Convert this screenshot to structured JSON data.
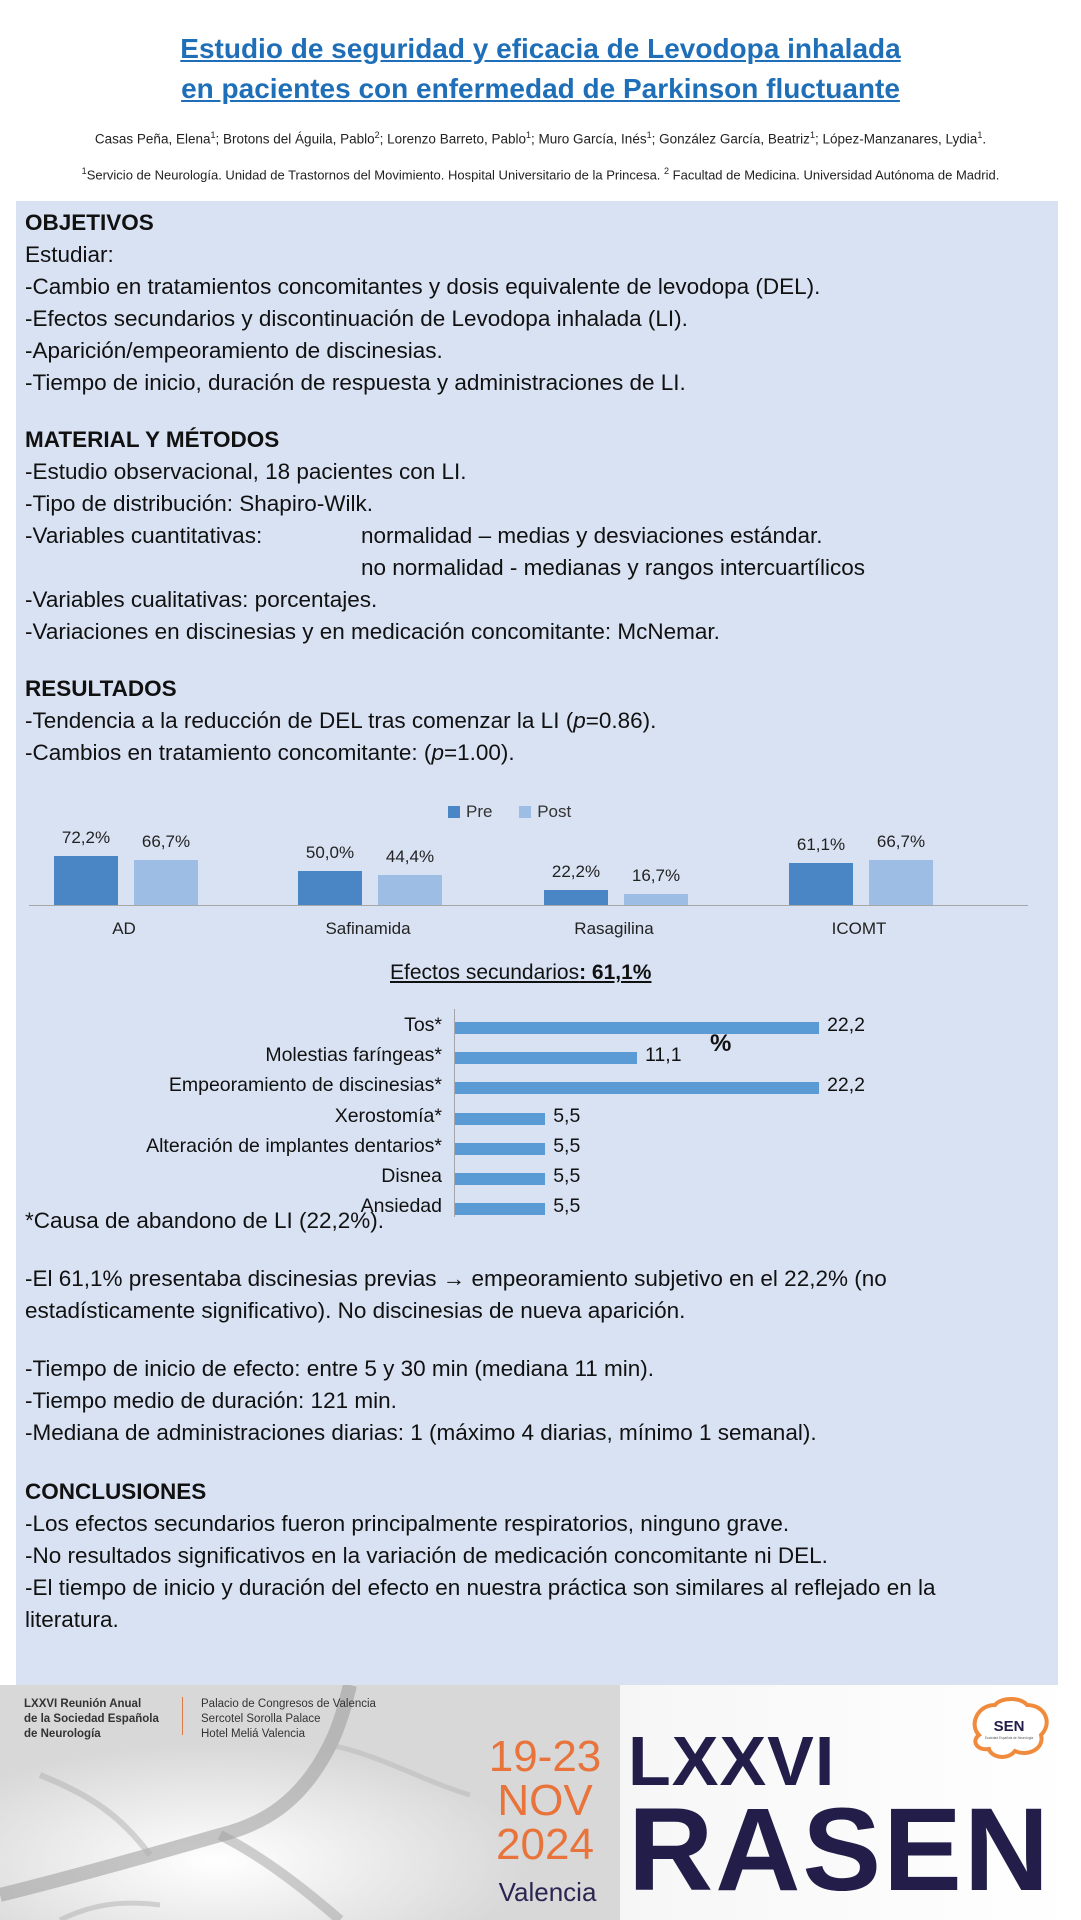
{
  "title": {
    "line1": "Estudio de seguridad y eficacia de Levodopa inhalada",
    "line2": "en pacientes con enfermedad de Parkinson fluctuante"
  },
  "authors": [
    {
      "name": "Casas Peña, Elena",
      "sup": "1",
      "sep": "; "
    },
    {
      "name": "Brotons del Águila, Pablo",
      "sup": "2",
      "sep": "; "
    },
    {
      "name": "Lorenzo Barreto, Pablo",
      "sup": "1",
      "sep": "; "
    },
    {
      "name": "Muro García, Inés",
      "sup": "1",
      "sep": "; "
    },
    {
      "name": "González García, Beatriz",
      "sup": "1",
      "sep": "; "
    },
    {
      "name": "López-Manzanares, Lydia",
      "sup": "1",
      "sep": "."
    }
  ],
  "affiliation": {
    "sup1": "1",
    "text1": "Servicio de Neurología. Unidad de Trastornos del Movimiento. Hospital Universitario de la Princesa.",
    "sup2": "2",
    "text2": " Facultad de Medicina. Universidad Autónoma de Madrid."
  },
  "objetivos": {
    "heading": "OBJETIVOS",
    "lines": [
      "Estudiar:",
      "-Cambio en tratamientos concomitantes y dosis equivalente de levodopa (DEL).",
      "-Efectos secundarios y discontinuación de Levodopa inhalada (LI).",
      "-Aparición/empeoramiento de discinesias.",
      "-Tiempo de inicio, duración de respuesta y administraciones de LI."
    ]
  },
  "metodos": {
    "heading": "MATERIAL Y MÉTODOS",
    "line1": "-Estudio observacional, 18 pacientes con LI.",
    "line2": "-Tipo de distribución: Shapiro-Wilk.",
    "line3": "-Variables cuantitativas:",
    "line3b": "normalidad – medias y desviaciones estándar.",
    "line4b": "no normalidad - medianas y rangos intercuartílicos",
    "line5": "-Variables cualitativas: porcentajes.",
    "line6": "-Variaciones en discinesias y en medicación concomitante: McNemar."
  },
  "resultados": {
    "heading": "RESULTADOS",
    "line1a": "-Tendencia a la reducción de DEL tras comenzar la LI (",
    "line1p": "p",
    "line1b": "=0.86).",
    "line2a": "-Cambios en tratamiento concomitante: (",
    "line2p": "p",
    "line2b": "=1.00).",
    "footnote": "*Causa de abandono de LI (22,2%).",
    "para1": "-El 61,1% presentaba discinesias previas",
    "arrow": "→",
    "para1b": " empeoramiento subjetivo en el  22,2% (no",
    "para1c": "estadísticamente significativo). No discinesias de nueva aparición.",
    "t1": "-Tiempo de inicio de efecto: entre 5 y 30 min (mediana 11 min).",
    "t2": "-Tiempo medio de duración: 121 min.",
    "t3": "-Mediana de administraciones diarias: 1 (máximo 4 diarias, mínimo 1 semanal)."
  },
  "conclusiones": {
    "heading": "CONCLUSIONES",
    "lines": [
      "-Los efectos secundarios fueron principalmente respiratorios, ninguno grave.",
      "-No resultados significativos en la variación de medicación concomitante ni DEL.",
      "-El tiempo de inicio y duración del efecto en nuestra práctica son similares al reflejado en la",
      "literatura."
    ]
  },
  "chart_data": [
    {
      "type": "bar",
      "categories": [
        "AD",
        "Safinamida",
        "Rasagilina",
        "ICOMT"
      ],
      "series": [
        {
          "name": "Pre",
          "values": [
            72.2,
            50.0,
            22.2,
            61.1
          ],
          "labels": [
            "72,2%",
            "50,0%",
            "22,2%",
            "61,1%"
          ],
          "color": "#4a86c5"
        },
        {
          "name": "Post",
          "values": [
            66.7,
            44.4,
            16.7,
            66.7
          ],
          "labels": [
            "66,7%",
            "44,4%",
            "16,7%",
            "66,7%"
          ],
          "color": "#9dbde4"
        }
      ],
      "legend": "top-center",
      "ylim": [
        0,
        100
      ],
      "grid": false
    },
    {
      "type": "bar",
      "orientation": "horizontal",
      "title": "Efectos secundarios: 61,1%",
      "title_prefix": "Efectos secundarios",
      "title_suffix": ": 61,1%",
      "unit_label": "%",
      "categories": [
        "Tos*",
        "Molestias faríngeas*",
        "Empeoramiento de discinesias*",
        "Xerostomía*",
        "Alteración de implantes dentarios*",
        "Disnea",
        "Ansiedad"
      ],
      "values": [
        22.2,
        11.1,
        22.2,
        5.5,
        5.5,
        5.5,
        5.5
      ],
      "labels": [
        "22,2",
        "11,1",
        "22,2",
        "5,5",
        "5,5",
        "5,5",
        "5,5"
      ],
      "color": "#5b9bd5",
      "xlim": [
        0,
        25
      ],
      "grid": false
    }
  ],
  "footer": {
    "meeting_line1": "LXXVI Reunión Anual",
    "meeting_line2": "de la Sociedad Española",
    "meeting_line3": "de Neurología",
    "venue1": "Palacio de Congresos de Valencia",
    "venue2": "Sercotel Sorolla Palace",
    "venue3": "Hotel Meliá Valencia",
    "date_days": "19-23",
    "date_month": "NOV",
    "date_year": "2024",
    "city": "Valencia",
    "brand_line1": "LXXVI",
    "brand_line2": "RASEN",
    "logo_text": "SEN",
    "logo_sub": "Sociedad Española de Neurología",
    "accent_color": "#e8743b",
    "brand_color": "#231d49"
  }
}
